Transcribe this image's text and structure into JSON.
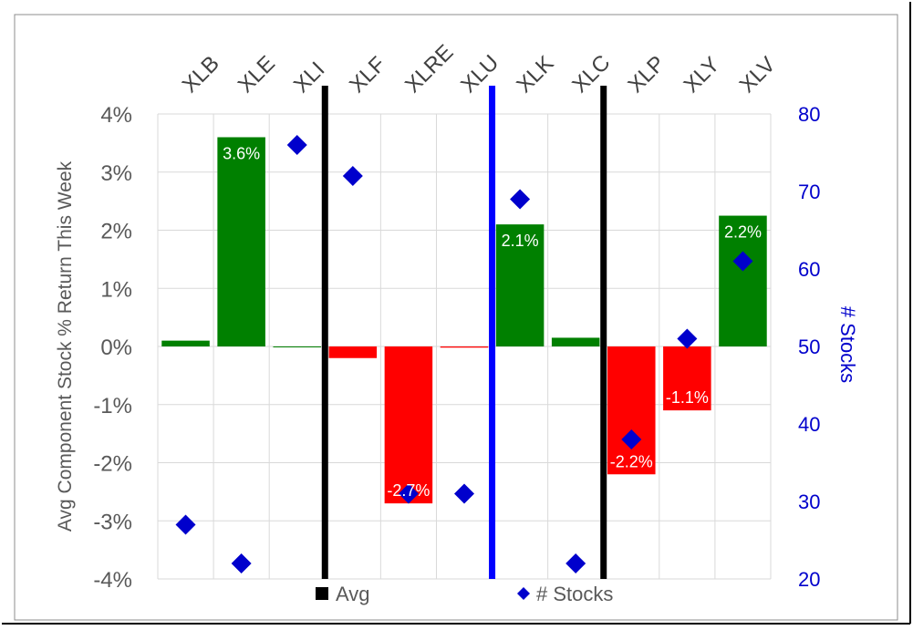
{
  "chart_data": {
    "type": "bar",
    "categories": [
      "XLB",
      "XLE",
      "XLI",
      "XLF",
      "XLRE",
      "XLU",
      "XLK",
      "XLC",
      "XLP",
      "XLY",
      "XLV"
    ],
    "series": [
      {
        "name": "Avg",
        "values": [
          0.1,
          3.6,
          0.0,
          -0.2,
          -2.7,
          -0.02,
          2.1,
          0.15,
          -2.2,
          -1.1,
          2.25
        ],
        "data_labels": [
          "",
          "3.6%",
          "",
          "",
          "-2.7%",
          "",
          "2.1%",
          "",
          "-2.2%",
          "-1.1%",
          "2.2%"
        ],
        "positive_color": "#008000",
        "negative_color": "#ff0000"
      },
      {
        "name": "# Stocks",
        "axis": "right",
        "marker": "diamond",
        "color": "#0000cc",
        "values": [
          27,
          22,
          76,
          72,
          31,
          31,
          69,
          22,
          38,
          51,
          61
        ]
      }
    ],
    "ylabel": "Avg Component Stock % Return This Week",
    "ylim": [
      -4,
      4
    ],
    "yticks": [
      "4%",
      "3%",
      "2%",
      "1%",
      "0%",
      "-1%",
      "-2%",
      "-3%",
      "-4%"
    ],
    "y2label": "# Stocks",
    "y2lim": [
      20,
      80
    ],
    "y2ticks": [
      "80",
      "70",
      "60",
      "50",
      "40",
      "30",
      "20"
    ],
    "separators": [
      {
        "between": [
          2,
          3
        ],
        "color": "#000000"
      },
      {
        "between": [
          5,
          6
        ],
        "color": "#0000ff"
      },
      {
        "between": [
          7,
          8
        ],
        "color": "#000000"
      }
    ],
    "legend": {
      "position": "bottom",
      "items": [
        {
          "label": "Avg",
          "color": "#000000",
          "shape": "square"
        },
        {
          "label": "# Stocks",
          "color": "#0000cc",
          "shape": "diamond"
        }
      ]
    },
    "grid": true
  }
}
